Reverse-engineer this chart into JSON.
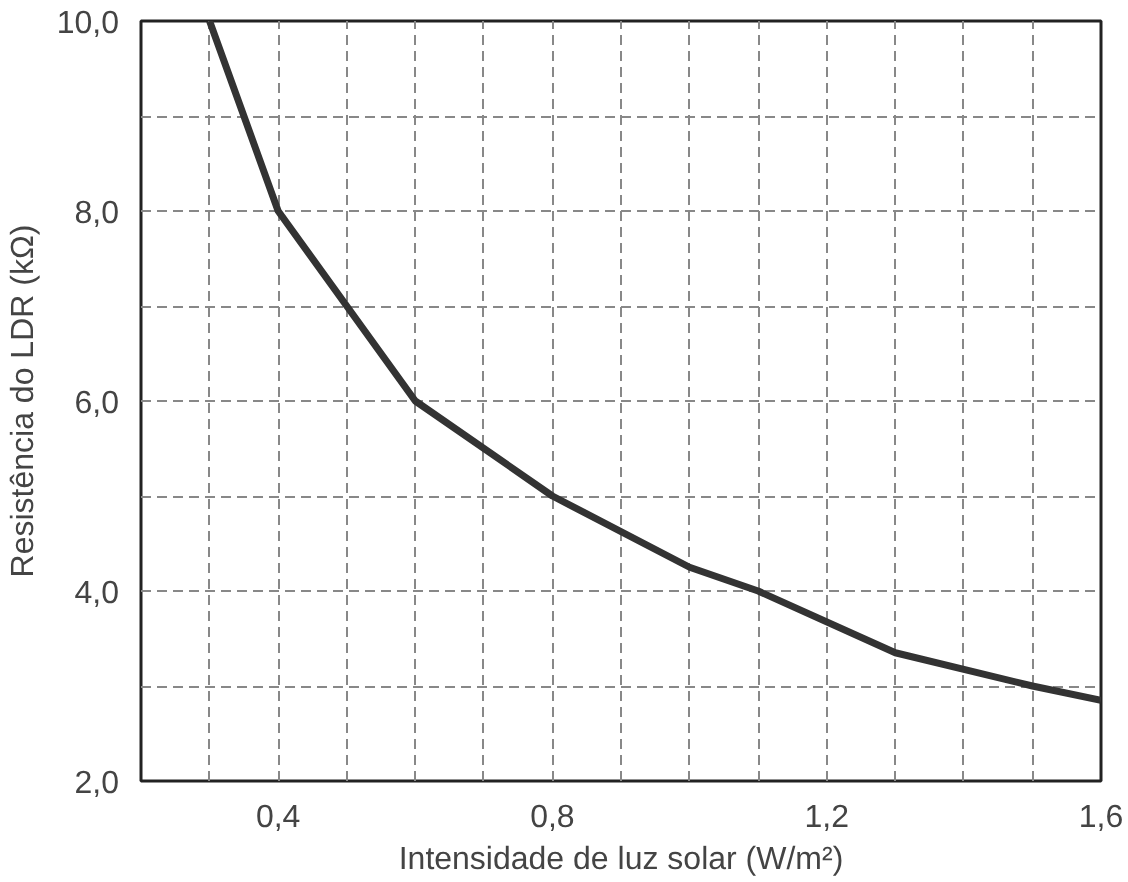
{
  "chart_data": {
    "type": "line",
    "xlabel": "Intensidade de luz solar (W/m²)",
    "ylabel": "Resistência do LDR (kΩ)",
    "x": [
      0.3,
      0.4,
      0.5,
      0.6,
      0.8,
      1.0,
      1.1,
      1.3,
      1.5,
      1.6
    ],
    "series": [
      {
        "color": "#333333",
        "values": [
          10,
          8,
          7,
          6,
          5,
          4.25,
          4.0,
          3.35,
          3.0,
          2.85
        ]
      }
    ],
    "xlim": [
      0.2,
      1.6
    ],
    "ylim": [
      2,
      10
    ],
    "xticks": [
      {
        "value": 0.2,
        "label": null
      },
      {
        "value": 0.3,
        "label": null
      },
      {
        "value": 0.4,
        "label": "0,4"
      },
      {
        "value": 0.5,
        "label": null
      },
      {
        "value": 0.6,
        "label": null
      },
      {
        "value": 0.7,
        "label": null
      },
      {
        "value": 0.8,
        "label": "0,8"
      },
      {
        "value": 0.9,
        "label": null
      },
      {
        "value": 1.0,
        "label": null
      },
      {
        "value": 1.1,
        "label": null
      },
      {
        "value": 1.2,
        "label": "1,2"
      },
      {
        "value": 1.3,
        "label": null
      },
      {
        "value": 1.4,
        "label": null
      },
      {
        "value": 1.5,
        "label": null
      },
      {
        "value": 1.6,
        "label": "1,6"
      }
    ],
    "yticks": [
      {
        "value": 2,
        "label": "2,0"
      },
      {
        "value": 3,
        "label": null
      },
      {
        "value": 4,
        "label": "4,0"
      },
      {
        "value": 5,
        "label": null
      },
      {
        "value": 6,
        "label": "6,0"
      },
      {
        "value": 7,
        "label": null
      },
      {
        "value": 8,
        "label": "8,0"
      },
      {
        "value": 9,
        "label": null
      },
      {
        "value": 10,
        "label": "10,0"
      }
    ],
    "grid": true,
    "line_style": "solid",
    "marker": "none"
  }
}
